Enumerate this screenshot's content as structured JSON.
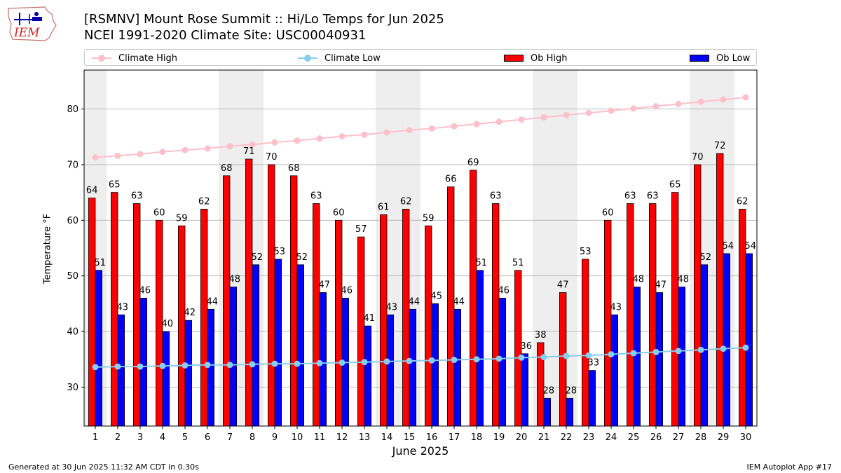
{
  "title": {
    "line1": "[RSMNV] Mount Rose Summit :: Hi/Lo Temps for Jun 2025",
    "line2": "NCEI 1991-2020 Climate Site: USC00040931"
  },
  "logo": {
    "text": "IEM"
  },
  "footer": {
    "left": "Generated at 30 Jun 2025 11:32 AM CDT in 0.30s",
    "right": "IEM Autoplot App #17"
  },
  "colors": {
    "ob_high": "#ff0000",
    "ob_low": "#0000ff",
    "climate_high": "#ffc0cb",
    "climate_low": "#87ceeb",
    "weekend_shade": "#eeeeee",
    "grid": "#b0b0b0"
  },
  "chart_data": {
    "type": "bar",
    "title": "[RSMNV] Mount Rose Summit :: Hi/Lo Temps for Jun 2025",
    "subtitle": "NCEI 1991-2020 Climate Site: USC00040931",
    "xlabel": "June 2025",
    "ylabel": "Temperature °F",
    "ylim": [
      23,
      87
    ],
    "yticks": [
      30,
      40,
      50,
      60,
      70,
      80
    ],
    "grid": true,
    "legend": "top",
    "categories": [
      "1",
      "2",
      "3",
      "4",
      "5",
      "6",
      "7",
      "8",
      "9",
      "10",
      "11",
      "12",
      "13",
      "14",
      "15",
      "16",
      "17",
      "18",
      "19",
      "20",
      "21",
      "22",
      "23",
      "24",
      "25",
      "26",
      "27",
      "28",
      "29",
      "30"
    ],
    "shaded_days": [
      1,
      7,
      8,
      14,
      15,
      21,
      22,
      28,
      29
    ],
    "series": [
      {
        "name": "Climate High",
        "kind": "line",
        "values": [
          71.3,
          71.6,
          71.9,
          72.3,
          72.6,
          72.9,
          73.3,
          73.6,
          74.0,
          74.3,
          74.7,
          75.1,
          75.4,
          75.8,
          76.2,
          76.5,
          76.9,
          77.3,
          77.7,
          78.1,
          78.5,
          78.9,
          79.3,
          79.7,
          80.1,
          80.5,
          80.9,
          81.3,
          81.7,
          82.1
        ]
      },
      {
        "name": "Climate Low",
        "kind": "line",
        "values": [
          33.6,
          33.7,
          33.7,
          33.8,
          33.9,
          34.0,
          34.0,
          34.1,
          34.2,
          34.2,
          34.3,
          34.4,
          34.5,
          34.6,
          34.7,
          34.8,
          34.9,
          35.0,
          35.1,
          35.3,
          35.4,
          35.6,
          35.7,
          35.9,
          36.1,
          36.3,
          36.5,
          36.7,
          36.9,
          37.1
        ]
      },
      {
        "name": "Ob High",
        "kind": "bar",
        "values": [
          64,
          65,
          63,
          60,
          59,
          62,
          68,
          71,
          70,
          68,
          63,
          60,
          57,
          61,
          62,
          59,
          66,
          69,
          63,
          51,
          38,
          47,
          53,
          60,
          63,
          63,
          65,
          70,
          72,
          62
        ]
      },
      {
        "name": "Ob Low",
        "kind": "bar",
        "values": [
          51,
          43,
          46,
          40,
          42,
          44,
          48,
          52,
          53,
          52,
          47,
          46,
          41,
          43,
          44,
          45,
          44,
          51,
          46,
          36,
          28,
          28,
          33,
          43,
          48,
          47,
          48,
          52,
          54,
          54
        ]
      }
    ]
  }
}
